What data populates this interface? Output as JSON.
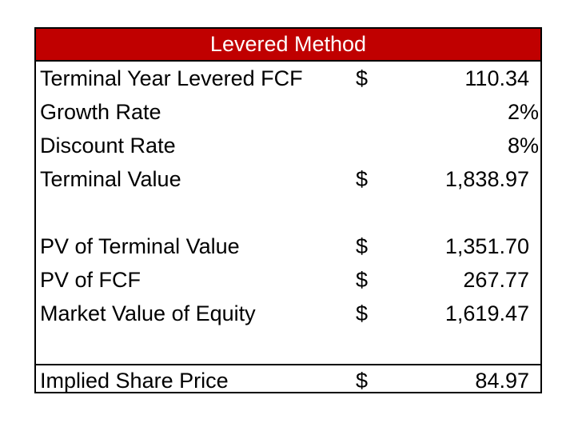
{
  "title": "Levered Method",
  "rows": [
    {
      "label": "Terminal Year Levered FCF",
      "currency": "$",
      "value": "110.34"
    },
    {
      "label": "Growth Rate",
      "currency": "",
      "value": "2%"
    },
    {
      "label": "Discount Rate",
      "currency": "",
      "value": "8%"
    },
    {
      "label": "Terminal Value",
      "currency": "$",
      "value": "1,838.97"
    },
    {
      "label": "PV of Terminal Value",
      "currency": "$",
      "value": "1,351.70"
    },
    {
      "label": "PV of FCF",
      "currency": "$",
      "value": "267.77"
    },
    {
      "label": "Market Value of Equity",
      "currency": "$",
      "value": "1,619.47"
    }
  ],
  "final_row": {
    "label": "Implied Share Price",
    "currency": "$",
    "value": "84.97"
  },
  "colors": {
    "header_background": "#c00000",
    "header_text": "#ffffff",
    "border": "#000000"
  }
}
